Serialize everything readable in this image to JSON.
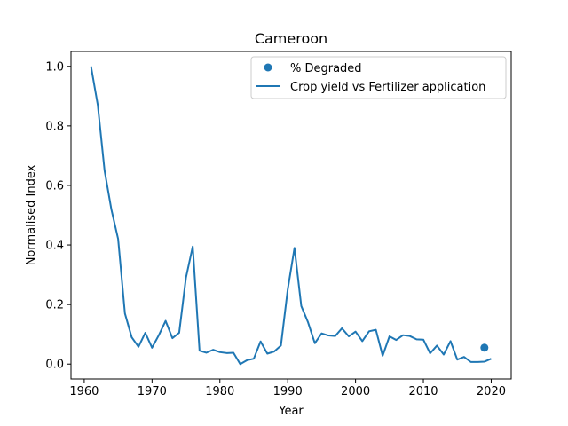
{
  "chart_data": {
    "type": "line",
    "title": "Cameroon",
    "xlabel": "Year",
    "ylabel": "Normalised Index",
    "xlim": [
      1958.05,
      2022.95
    ],
    "ylim": [
      -0.05,
      1.05
    ],
    "xticks": [
      1960,
      1970,
      1980,
      1990,
      2000,
      2010,
      2020
    ],
    "yticks": [
      0.0,
      0.2,
      0.4,
      0.6,
      0.8,
      1.0
    ],
    "ytick_labels": [
      "0.0",
      "0.2",
      "0.4",
      "0.6",
      "0.8",
      "1.0"
    ],
    "grid": false,
    "legend_position": "upper right",
    "series": [
      {
        "name": "Crop yield vs Fertilizer application",
        "kind": "line",
        "color": "#1f77b4",
        "x": [
          1961,
          1962,
          1963,
          1964,
          1965,
          1966,
          1967,
          1968,
          1969,
          1970,
          1971,
          1972,
          1973,
          1974,
          1975,
          1976,
          1977,
          1978,
          1979,
          1980,
          1981,
          1982,
          1983,
          1984,
          1985,
          1986,
          1987,
          1988,
          1989,
          1990,
          1991,
          1992,
          1993,
          1994,
          1995,
          1996,
          1997,
          1998,
          1999,
          2000,
          2001,
          2002,
          2003,
          2004,
          2005,
          2006,
          2007,
          2008,
          2009,
          2010,
          2011,
          2012,
          2013,
          2014,
          2015,
          2016,
          2017,
          2018,
          2019,
          2020
        ],
        "y": [
          1.0,
          0.87,
          0.65,
          0.52,
          0.42,
          0.17,
          0.09,
          0.058,
          0.105,
          0.055,
          0.097,
          0.145,
          0.087,
          0.105,
          0.29,
          0.395,
          0.045,
          0.038,
          0.048,
          0.04,
          0.037,
          0.038,
          0.0,
          0.013,
          0.018,
          0.076,
          0.035,
          0.042,
          0.062,
          0.25,
          0.39,
          0.195,
          0.14,
          0.07,
          0.103,
          0.096,
          0.094,
          0.12,
          0.093,
          0.109,
          0.077,
          0.11,
          0.115,
          0.028,
          0.093,
          0.081,
          0.097,
          0.094,
          0.083,
          0.082,
          0.036,
          0.062,
          0.032,
          0.077,
          0.015,
          0.024,
          0.007,
          0.007,
          0.008,
          0.018
        ]
      },
      {
        "name": "% Degraded",
        "kind": "scatter",
        "color": "#1f77b4",
        "x": [
          2019
        ],
        "y": [
          0.055
        ]
      }
    ]
  }
}
